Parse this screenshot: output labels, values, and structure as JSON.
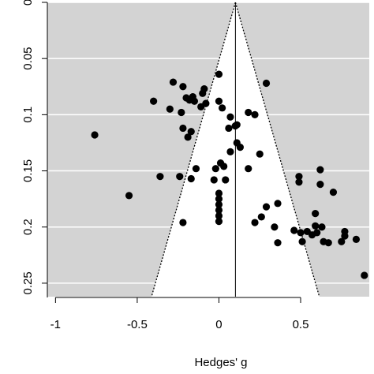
{
  "chart_data": {
    "type": "scatter",
    "title": "",
    "xlabel": "Hedges' g",
    "ylabel": "",
    "xlim": [
      -1.05,
      0.92
    ],
    "ylim": [
      0,
      0.262
    ],
    "y_reversed": true,
    "x_ticks": [
      -1,
      -0.5,
      0,
      0.5
    ],
    "x_tick_labels": [
      "-1",
      "-0.5",
      "0",
      "0.5"
    ],
    "y_ticks": [
      0,
      0.05,
      0.1,
      0.15,
      0.2,
      0.25
    ],
    "y_tick_labels": [
      "0",
      "0.05",
      "0.1",
      "0.15",
      "0.2",
      "0.25"
    ],
    "grid": "horizontal",
    "background": "#d3d3d3",
    "funnel": {
      "center": 0.101,
      "ci_multiplier": 1.96,
      "fill": "#ffffff",
      "line_style": "dotted"
    },
    "points": [
      {
        "x": -0.76,
        "y": 0.118
      },
      {
        "x": -0.55,
        "y": 0.172
      },
      {
        "x": -0.4,
        "y": 0.088
      },
      {
        "x": -0.36,
        "y": 0.155
      },
      {
        "x": -0.3,
        "y": 0.095
      },
      {
        "x": -0.28,
        "y": 0.071
      },
      {
        "x": -0.24,
        "y": 0.155
      },
      {
        "x": -0.23,
        "y": 0.098
      },
      {
        "x": -0.22,
        "y": 0.075
      },
      {
        "x": -0.22,
        "y": 0.112
      },
      {
        "x": -0.22,
        "y": 0.196
      },
      {
        "x": -0.2,
        "y": 0.085
      },
      {
        "x": -0.19,
        "y": 0.12
      },
      {
        "x": -0.18,
        "y": 0.087
      },
      {
        "x": -0.17,
        "y": 0.115
      },
      {
        "x": -0.17,
        "y": 0.157
      },
      {
        "x": -0.16,
        "y": 0.084
      },
      {
        "x": -0.15,
        "y": 0.088
      },
      {
        "x": -0.14,
        "y": 0.148
      },
      {
        "x": -0.11,
        "y": 0.093
      },
      {
        "x": -0.1,
        "y": 0.081
      },
      {
        "x": -0.09,
        "y": 0.077
      },
      {
        "x": -0.08,
        "y": 0.09
      },
      {
        "x": -0.03,
        "y": 0.158
      },
      {
        "x": -0.02,
        "y": 0.148
      },
      {
        "x": 0.0,
        "y": 0.064
      },
      {
        "x": 0.0,
        "y": 0.088
      },
      {
        "x": 0.01,
        "y": 0.143
      },
      {
        "x": 0.0,
        "y": 0.17
      },
      {
        "x": 0.0,
        "y": 0.175
      },
      {
        "x": 0.0,
        "y": 0.18
      },
      {
        "x": 0.0,
        "y": 0.185
      },
      {
        "x": 0.0,
        "y": 0.19
      },
      {
        "x": 0.0,
        "y": 0.195
      },
      {
        "x": 0.02,
        "y": 0.094
      },
      {
        "x": 0.03,
        "y": 0.146
      },
      {
        "x": 0.04,
        "y": 0.158
      },
      {
        "x": 0.06,
        "y": 0.112
      },
      {
        "x": 0.07,
        "y": 0.133
      },
      {
        "x": 0.07,
        "y": 0.102
      },
      {
        "x": 0.1,
        "y": 0.11
      },
      {
        "x": 0.11,
        "y": 0.109
      },
      {
        "x": 0.11,
        "y": 0.125
      },
      {
        "x": 0.13,
        "y": 0.129
      },
      {
        "x": 0.18,
        "y": 0.098
      },
      {
        "x": 0.18,
        "y": 0.148
      },
      {
        "x": 0.22,
        "y": 0.1
      },
      {
        "x": 0.22,
        "y": 0.196
      },
      {
        "x": 0.25,
        "y": 0.135
      },
      {
        "x": 0.26,
        "y": 0.191
      },
      {
        "x": 0.29,
        "y": 0.072
      },
      {
        "x": 0.29,
        "y": 0.182
      },
      {
        "x": 0.34,
        "y": 0.2
      },
      {
        "x": 0.36,
        "y": 0.179
      },
      {
        "x": 0.36,
        "y": 0.214
      },
      {
        "x": 0.46,
        "y": 0.203
      },
      {
        "x": 0.49,
        "y": 0.155
      },
      {
        "x": 0.49,
        "y": 0.16
      },
      {
        "x": 0.5,
        "y": 0.205
      },
      {
        "x": 0.51,
        "y": 0.213
      },
      {
        "x": 0.54,
        "y": 0.204
      },
      {
        "x": 0.57,
        "y": 0.207
      },
      {
        "x": 0.59,
        "y": 0.188
      },
      {
        "x": 0.59,
        "y": 0.199
      },
      {
        "x": 0.6,
        "y": 0.205
      },
      {
        "x": 0.62,
        "y": 0.149
      },
      {
        "x": 0.62,
        "y": 0.162
      },
      {
        "x": 0.63,
        "y": 0.2
      },
      {
        "x": 0.64,
        "y": 0.213
      },
      {
        "x": 0.67,
        "y": 0.214
      },
      {
        "x": 0.7,
        "y": 0.169
      },
      {
        "x": 0.75,
        "y": 0.213
      },
      {
        "x": 0.77,
        "y": 0.204
      },
      {
        "x": 0.77,
        "y": 0.208
      },
      {
        "x": 0.84,
        "y": 0.211
      },
      {
        "x": 0.89,
        "y": 0.243
      }
    ]
  }
}
